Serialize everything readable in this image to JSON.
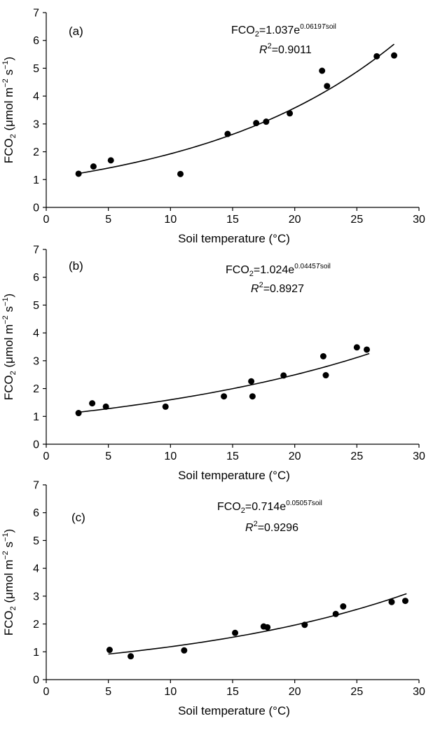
{
  "chart_data": [
    {
      "type": "scatter",
      "panel_label": "(a)",
      "xlabel": "Soil temperature (°C)",
      "ylabel": {
        "base": "FCO",
        "sub": "2",
        "unit_pre": " (μmol m",
        "sup1": "−2",
        "unit_mid": " s",
        "sup2": "−1",
        "unit_post": ")"
      },
      "xlim": [
        0,
        30
      ],
      "ylim": [
        0,
        7
      ],
      "xticks": [
        "0",
        "5",
        "10",
        "15",
        "20",
        "25",
        "30"
      ],
      "yticks": [
        "0",
        "1",
        "2",
        "3",
        "4",
        "5",
        "6",
        "7"
      ],
      "equation": {
        "lhs": "FCO",
        "lhs_sub": "2",
        "rhs": "=1.037e",
        "exp": "0.0619",
        "exp_var": "T",
        "exp_var_sub": "soil",
        "r2_label": "R",
        "r2_sup": "2",
        "r2_value": "=0.9011"
      },
      "fit": {
        "a": 1.037,
        "b": 0.0619,
        "x_range": [
          2.5,
          28
        ]
      },
      "points": [
        [
          2.6,
          1.21
        ],
        [
          3.8,
          1.47
        ],
        [
          5.2,
          1.69
        ],
        [
          10.8,
          1.2
        ],
        [
          14.6,
          2.64
        ],
        [
          16.9,
          3.03
        ],
        [
          17.7,
          3.08
        ],
        [
          19.6,
          3.38
        ],
        [
          22.2,
          4.91
        ],
        [
          22.6,
          4.36
        ],
        [
          26.6,
          5.43
        ],
        [
          28.0,
          5.46
        ]
      ]
    },
    {
      "type": "scatter",
      "panel_label": "(b)",
      "xlabel": "Soil temperature (°C)",
      "ylabel": {
        "base": "FCO",
        "sub": "2",
        "unit_pre": " (μmol m",
        "sup1": "−2",
        "unit_mid": " s",
        "sup2": "−1",
        "unit_post": ")"
      },
      "xlim": [
        0,
        30
      ],
      "ylim": [
        0,
        7
      ],
      "xticks": [
        "0",
        "5",
        "10",
        "15",
        "20",
        "25",
        "30"
      ],
      "yticks": [
        "0",
        "1",
        "2",
        "3",
        "4",
        "5",
        "6",
        "7"
      ],
      "equation": {
        "lhs": "FCO",
        "lhs_sub": "2",
        "rhs": "=1.024e",
        "exp": "0.0445",
        "exp_var": "T",
        "exp_var_sub": "soil",
        "r2_label": "R",
        "r2_sup": "2",
        "r2_value": "=0.8927"
      },
      "fit": {
        "a": 1.024,
        "b": 0.0445,
        "x_range": [
          2.5,
          26
        ]
      },
      "points": [
        [
          2.6,
          1.12
        ],
        [
          3.7,
          1.47
        ],
        [
          4.8,
          1.35
        ],
        [
          9.6,
          1.35
        ],
        [
          14.3,
          1.72
        ],
        [
          16.5,
          2.26
        ],
        [
          16.6,
          1.72
        ],
        [
          19.1,
          2.47
        ],
        [
          22.3,
          3.16
        ],
        [
          22.5,
          2.48
        ],
        [
          25.0,
          3.48
        ],
        [
          25.8,
          3.4
        ]
      ]
    },
    {
      "type": "scatter",
      "panel_label": "(c)",
      "xlabel": "Soil temperature (°C)",
      "ylabel": {
        "base": "FCO",
        "sub": "2",
        "unit_pre": " (μmol m",
        "sup1": "−2",
        "unit_mid": " s",
        "sup2": "−1",
        "unit_post": ")"
      },
      "xlim": [
        0,
        30
      ],
      "ylim": [
        0,
        7
      ],
      "xticks": [
        "0",
        "5",
        "10",
        "15",
        "20",
        "25",
        "30"
      ],
      "yticks": [
        "0",
        "1",
        "2",
        "3",
        "4",
        "5",
        "6",
        "7"
      ],
      "equation": {
        "lhs": "FCO",
        "lhs_sub": "2",
        "rhs": "=0.714e",
        "exp": "0.0505",
        "exp_var": "T",
        "exp_var_sub": "soil",
        "r2_label": "R",
        "r2_sup": "2",
        "r2_value": "=0.9296"
      },
      "fit": {
        "a": 0.714,
        "b": 0.0505,
        "x_range": [
          5,
          29
        ]
      },
      "points": [
        [
          5.1,
          1.07
        ],
        [
          6.8,
          0.84
        ],
        [
          11.1,
          1.05
        ],
        [
          15.2,
          1.68
        ],
        [
          17.5,
          1.91
        ],
        [
          17.8,
          1.88
        ],
        [
          20.8,
          1.97
        ],
        [
          23.3,
          2.36
        ],
        [
          23.9,
          2.63
        ],
        [
          27.8,
          2.79
        ],
        [
          28.9,
          2.83
        ]
      ]
    }
  ]
}
